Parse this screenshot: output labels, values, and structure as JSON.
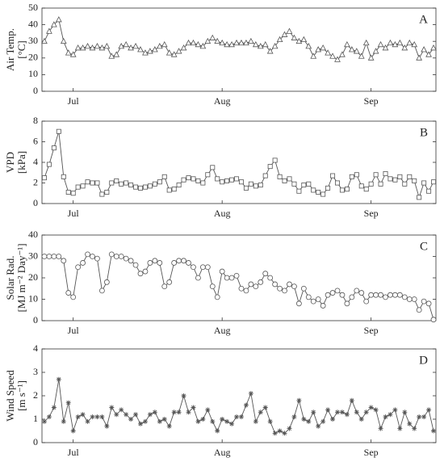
{
  "chart_data": [
    {
      "type": "line",
      "panel_label": "A",
      "ylabel": [
        "Air Temp.",
        "[°C]"
      ],
      "marker": "triangle",
      "color": "#555555",
      "categories": [
        null,
        null,
        null,
        null,
        null,
        null,
        "Jul",
        null,
        null,
        null,
        null,
        null,
        null,
        null,
        null,
        null,
        null,
        null,
        null,
        null,
        null,
        null,
        null,
        null,
        null,
        null,
        null,
        null,
        null,
        null,
        null,
        null,
        null,
        null,
        null,
        null,
        null,
        "Aug",
        null,
        null,
        null,
        null,
        null,
        null,
        null,
        null,
        null,
        null,
        null,
        null,
        null,
        null,
        null,
        null,
        null,
        null,
        null,
        null,
        null,
        null,
        null,
        null,
        null,
        null,
        null,
        null,
        null,
        null,
        "Sep",
        null,
        null,
        null,
        null,
        null,
        null,
        null,
        null,
        null,
        null,
        null,
        null,
        null
      ],
      "values": [
        30,
        36,
        40,
        43,
        30,
        23,
        22,
        26,
        26,
        27,
        26,
        27,
        26,
        27,
        21,
        22,
        27,
        28,
        26,
        27,
        25,
        23,
        24,
        25,
        27,
        28,
        23,
        22,
        24,
        26,
        29,
        29,
        28,
        27,
        30,
        32,
        30,
        29,
        28,
        28,
        29,
        29,
        29,
        30,
        28,
        27,
        28,
        24,
        27,
        31,
        34,
        36,
        32,
        30,
        31,
        27,
        21,
        25,
        26,
        23,
        21,
        19,
        22,
        28,
        25,
        24,
        21,
        29,
        20,
        24,
        28,
        26,
        29,
        28,
        29,
        26,
        29,
        28,
        20,
        25,
        22,
        26
      ],
      "ylim": [
        0,
        50
      ],
      "yticks": [
        0,
        10,
        20,
        30,
        40,
        50
      ]
    },
    {
      "type": "line",
      "panel_label": "B",
      "ylabel": [
        "VPD",
        "[kPa]"
      ],
      "marker": "square",
      "color": "#555555",
      "categories": [
        null,
        null,
        null,
        null,
        null,
        null,
        "Jul",
        null,
        null,
        null,
        null,
        null,
        null,
        null,
        null,
        null,
        null,
        null,
        null,
        null,
        null,
        null,
        null,
        null,
        null,
        null,
        null,
        null,
        null,
        null,
        null,
        null,
        null,
        null,
        null,
        null,
        null,
        "Aug",
        null,
        null,
        null,
        null,
        null,
        null,
        null,
        null,
        null,
        null,
        null,
        null,
        null,
        null,
        null,
        null,
        null,
        null,
        null,
        null,
        null,
        null,
        null,
        null,
        null,
        null,
        null,
        null,
        null,
        null,
        "Sep",
        null,
        null,
        null,
        null,
        null,
        null,
        null,
        null,
        null,
        null,
        null,
        null,
        null
      ],
      "values": [
        2.5,
        3.8,
        5.4,
        7.0,
        2.6,
        1.1,
        1.0,
        1.6,
        1.7,
        2.1,
        2.0,
        2.0,
        0.9,
        1.1,
        2.0,
        2.2,
        1.9,
        2.0,
        1.8,
        1.6,
        1.5,
        1.6,
        1.7,
        1.9,
        2.1,
        2.6,
        1.3,
        1.4,
        1.8,
        2.3,
        2.5,
        2.4,
        2.2,
        2.0,
        2.8,
        3.5,
        2.4,
        2.1,
        2.2,
        2.3,
        2.4,
        2.1,
        1.5,
        1.9,
        1.7,
        1.8,
        2.7,
        3.6,
        4.2,
        2.6,
        2.2,
        2.4,
        1.9,
        1.2,
        1.8,
        1.9,
        1.3,
        1.1,
        0.9,
        1.5,
        2.7,
        2.0,
        1.3,
        1.4,
        2.6,
        2.8,
        1.7,
        1.4,
        1.9,
        2.8,
        1.9,
        2.9,
        2.4,
        2.3,
        2.6,
        1.9,
        2.6,
        2.2,
        0.6,
        2.0,
        1.2,
        2.1
      ],
      "ylim": [
        0,
        8
      ],
      "yticks": [
        0,
        2,
        4,
        6,
        8
      ]
    },
    {
      "type": "line",
      "panel_label": "C",
      "ylabel": [
        "Solar Rad.",
        "[MJ m⁻² Day⁻¹]"
      ],
      "marker": "circle",
      "color": "#555555",
      "categories": [
        null,
        null,
        null,
        null,
        null,
        null,
        "Jul",
        null,
        null,
        null,
        null,
        null,
        null,
        null,
        null,
        null,
        null,
        null,
        null,
        null,
        null,
        null,
        null,
        null,
        null,
        null,
        null,
        null,
        null,
        null,
        null,
        null,
        null,
        null,
        null,
        null,
        null,
        "Aug",
        null,
        null,
        null,
        null,
        null,
        null,
        null,
        null,
        null,
        null,
        null,
        null,
        null,
        null,
        null,
        null,
        null,
        null,
        null,
        null,
        null,
        null,
        null,
        null,
        null,
        null,
        null,
        null,
        null,
        null,
        "Sep",
        null,
        null,
        null,
        null,
        null,
        null,
        null,
        null,
        null,
        null,
        null,
        null,
        null
      ],
      "values": [
        30,
        30,
        30,
        30,
        28,
        13,
        11,
        25,
        27,
        31,
        30,
        29,
        14,
        18,
        31,
        30,
        30,
        29,
        28,
        26,
        22,
        23,
        27,
        28,
        27,
        16,
        18,
        27,
        28,
        28,
        27,
        25,
        20,
        25,
        25,
        16,
        11,
        23,
        20,
        20,
        21,
        15,
        14,
        17,
        16,
        18,
        22,
        20,
        17,
        15,
        14,
        17,
        16,
        8,
        15,
        11,
        9,
        10,
        7,
        12,
        13,
        14,
        12,
        8,
        11,
        14,
        13,
        9,
        12,
        12,
        12,
        11,
        12,
        12,
        12,
        11,
        10,
        10,
        5,
        9,
        8,
        0.5
      ],
      "ylim": [
        0,
        40
      ],
      "yticks": [
        0,
        10,
        20,
        30,
        40
      ]
    },
    {
      "type": "line",
      "panel_label": "D",
      "ylabel": [
        "Wind Speed",
        "[m s⁻¹]"
      ],
      "marker": "star",
      "color": "#555555",
      "categories": [
        null,
        null,
        null,
        null,
        null,
        null,
        "Jul",
        null,
        null,
        null,
        null,
        null,
        null,
        null,
        null,
        null,
        null,
        null,
        null,
        null,
        null,
        null,
        null,
        null,
        null,
        null,
        null,
        null,
        null,
        null,
        null,
        null,
        null,
        null,
        null,
        null,
        null,
        "Aug",
        null,
        null,
        null,
        null,
        null,
        null,
        null,
        null,
        null,
        null,
        null,
        null,
        null,
        null,
        null,
        null,
        null,
        null,
        null,
        null,
        null,
        null,
        null,
        null,
        null,
        null,
        null,
        null,
        null,
        null,
        "Sep",
        null,
        null,
        null,
        null,
        null,
        null,
        null,
        null,
        null,
        null,
        null,
        null,
        null
      ],
      "values": [
        0.9,
        1.1,
        1.5,
        2.7,
        0.9,
        1.7,
        0.5,
        1.1,
        1.2,
        0.9,
        1.1,
        1.1,
        1.1,
        0.7,
        1.5,
        1.2,
        1.4,
        1.2,
        1.0,
        1.2,
        0.8,
        0.9,
        1.2,
        1.3,
        0.9,
        1.0,
        0.7,
        1.3,
        1.3,
        2.0,
        1.3,
        1.5,
        0.9,
        1.0,
        1.4,
        0.9,
        0.5,
        1.0,
        0.9,
        0.8,
        1.1,
        1.1,
        1.6,
        2.1,
        0.9,
        1.3,
        1.5,
        0.9,
        0.4,
        0.5,
        0.4,
        0.6,
        1.1,
        1.8,
        1.0,
        0.9,
        1.3,
        0.7,
        0.9,
        1.4,
        1.0,
        1.3,
        1.3,
        1.2,
        1.8,
        1.3,
        1.0,
        1.3,
        1.5,
        1.4,
        0.6,
        1.1,
        1.2,
        1.4,
        0.6,
        1.3,
        0.8,
        0.6,
        1.1,
        1.1,
        1.4,
        0.5
      ],
      "ylim": [
        0,
        4
      ],
      "yticks": [
        0,
        1,
        2,
        3,
        4
      ]
    }
  ]
}
